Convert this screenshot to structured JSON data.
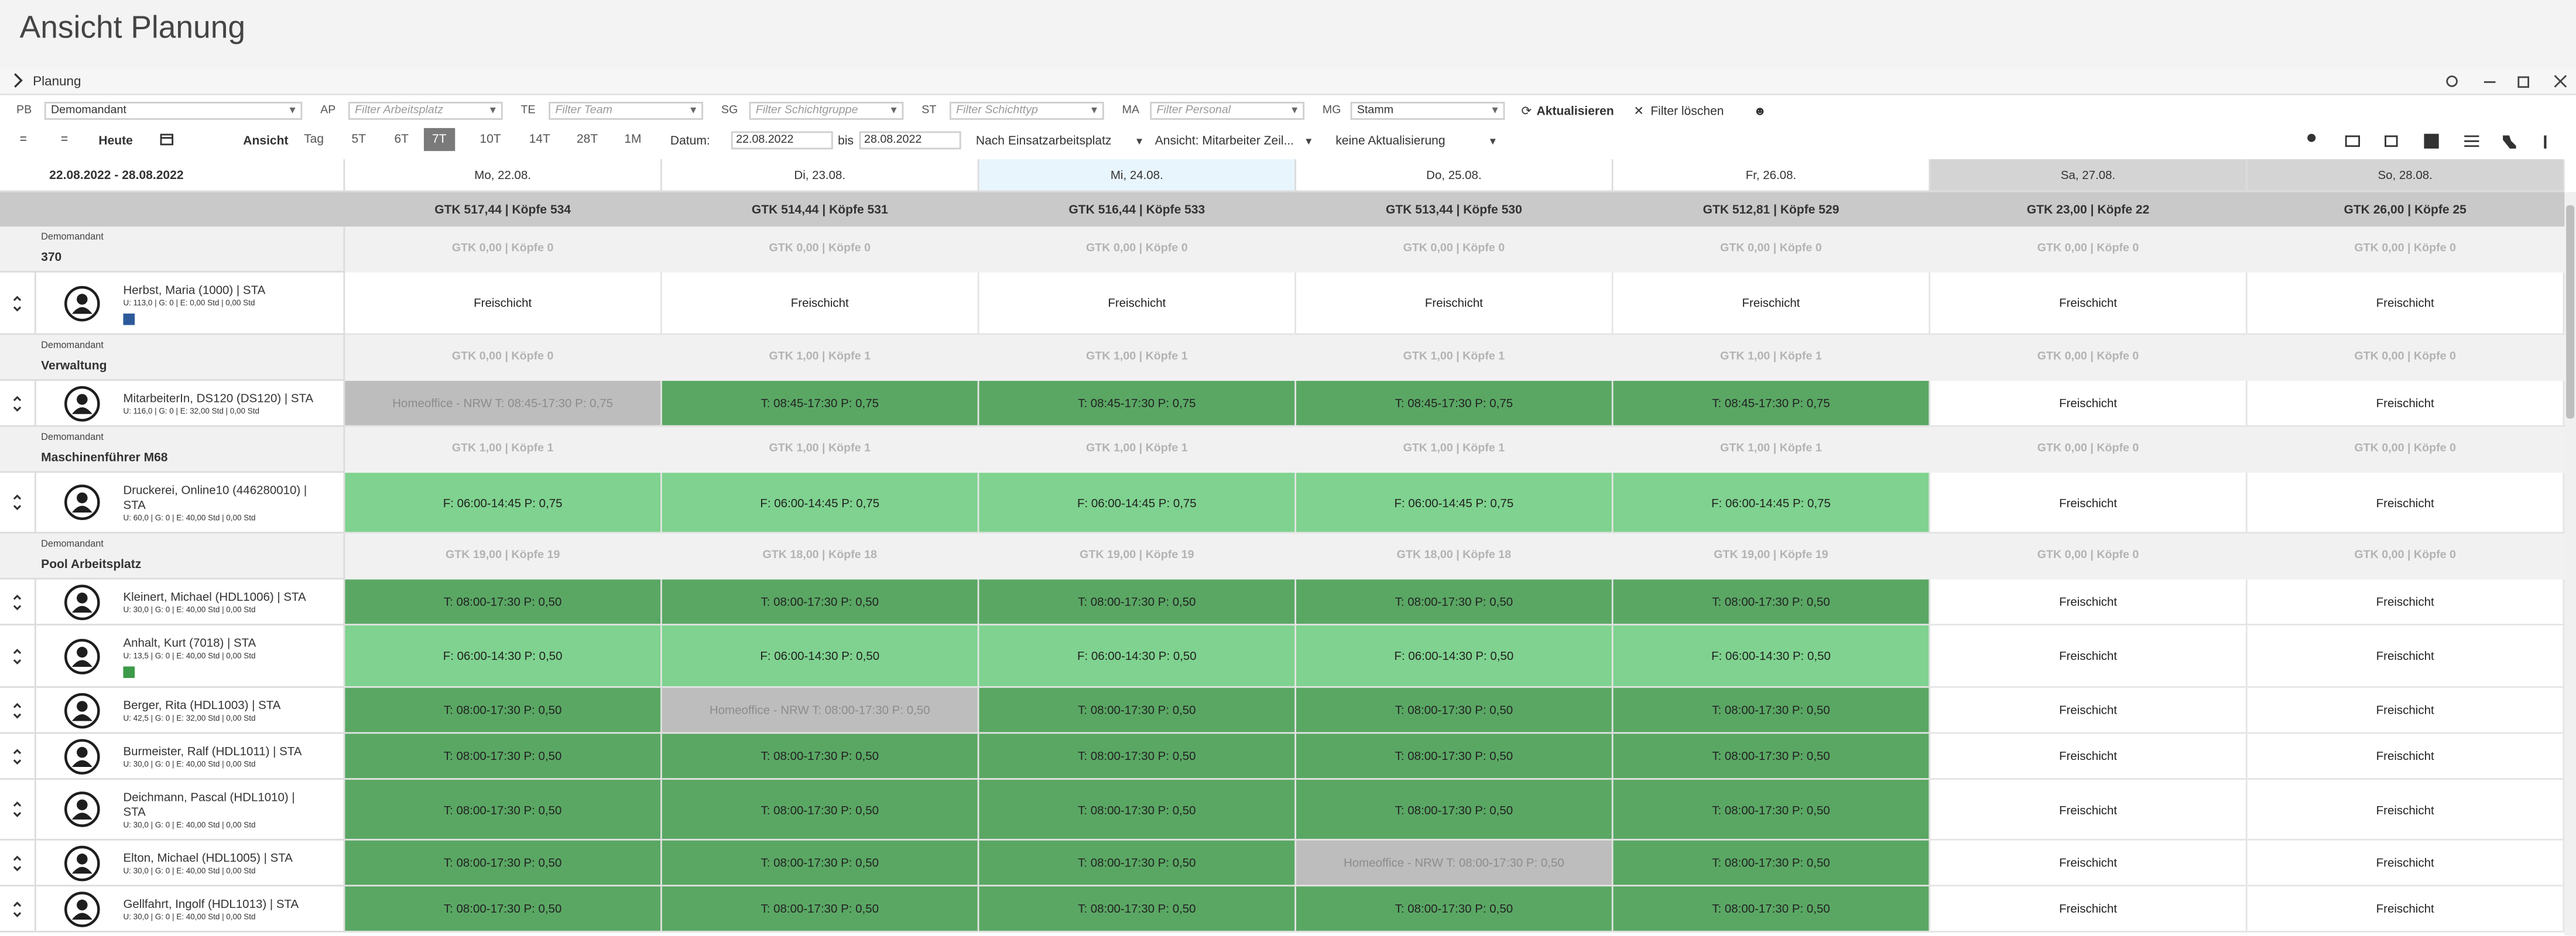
{
  "header": {
    "title": "Ansicht Planung"
  },
  "panel": {
    "title": "Planung"
  },
  "filters": [
    {
      "label": "PB",
      "value": "Demomandant"
    },
    {
      "label": "AP",
      "placeholder": "Filter Arbeitsplatz"
    },
    {
      "label": "TE",
      "placeholder": "Filter Team"
    },
    {
      "label": "SG",
      "placeholder": "Filter Schichtgruppe"
    },
    {
      "label": "ST",
      "placeholder": "Filter Schichttyp"
    },
    {
      "label": "MA",
      "placeholder": "Filter Personal"
    },
    {
      "label": "MG",
      "value": "Stamm"
    }
  ],
  "filter_buttons": {
    "refresh": "Aktualisieren",
    "clear": "Filter löschen"
  },
  "toolbar": {
    "today": "Heute",
    "view_label": "Ansicht",
    "views": [
      "Tag",
      "5T",
      "6T",
      "7T",
      "10T",
      "14T",
      "28T",
      "1M"
    ],
    "active_view": "7T",
    "date_label": "Datum:",
    "date_from": "22.08.2022",
    "date_to_label": "bis",
    "date_to": "28.08.2022",
    "grouping": "Nach Einsatzarbeitsplatz",
    "view_mode": "Ansicht: Mitarbeiter Zeil...",
    "refresh_mode": "keine Aktualisierung"
  },
  "grid": {
    "range": "22.08.2022 - 28.08.2022",
    "days": [
      {
        "label": "Mo, 22.08.",
        "color": "#ffffff"
      },
      {
        "label": "Di, 23.08.",
        "color": "#ffffff"
      },
      {
        "label": "Mi, 24.08.",
        "color": "#e9f5fc"
      },
      {
        "label": "Do, 25.08.",
        "color": "#ffffff"
      },
      {
        "label": "Fr, 26.08.",
        "color": "#ffffff"
      },
      {
        "label": "Sa, 27.08.",
        "color": "#d4d4d4"
      },
      {
        "label": "So, 28.08.",
        "color": "#d4d4d4"
      }
    ],
    "totals": [
      "GTK 517,44 | Köpfe 534",
      "GTK 514,44 | Köpfe 531",
      "GTK 516,44 | Köpfe 533",
      "GTK 513,44 | Köpfe 530",
      "GTK 512,81 | Köpfe 529",
      "GTK 23,00 | Köpfe 22",
      "GTK 26,00 | Köpfe 25"
    ],
    "groups": [
      {
        "client": "Demomandant",
        "name": "370",
        "summaries": [
          "GTK 0,00 | Köpfe 0",
          "GTK 0,00 | Köpfe 0",
          "GTK 0,00 | Köpfe 0",
          "GTK 0,00 | Köpfe 0",
          "GTK 0,00 | Köpfe 0",
          "GTK 0,00 | Köpfe 0",
          "GTK 0,00 | Köpfe 0"
        ],
        "rows": [
          {
            "name": "Herbst, Maria (1000) | STA",
            "info": "U: 113,0 | G: 0 | E: 0,00 Std | 0,00 Std",
            "badge_color": "#2d5a9a",
            "cells": [
              {
                "text": "Freischicht",
                "color": "#ffffff"
              },
              {
                "text": "Freischicht",
                "color": "#ffffff"
              },
              {
                "text": "Freischicht",
                "color": "#ffffff"
              },
              {
                "text": "Freischicht",
                "color": "#ffffff"
              },
              {
                "text": "Freischicht",
                "color": "#ffffff"
              },
              {
                "text": "Freischicht",
                "color": "#ffffff"
              },
              {
                "text": "Freischicht",
                "color": "#ffffff"
              }
            ]
          }
        ]
      },
      {
        "client": "Demomandant",
        "name": "Verwaltung",
        "summaries": [
          "GTK 0,00 | Köpfe 0",
          "GTK 1,00 | Köpfe 1",
          "GTK 1,00 | Köpfe 1",
          "GTK 1,00 | Köpfe 1",
          "GTK 1,00 | Köpfe 1",
          "GTK 0,00 | Köpfe 0",
          "GTK 0,00 | Köpfe 0"
        ],
        "rows": [
          {
            "name": "MitarbeiterIn, DS120 (DS120) | STA",
            "info": "U: 116,0 | G: 0 | E: 32,00 Std | 0,00 Std",
            "cells": [
              {
                "text": "Homeoffice - NRW T: 08:45-17:30 P: 0,75",
                "color": "#bdbdbd",
                "text_color": "#8c8c8c"
              },
              {
                "text": "T: 08:45-17:30 P: 0,75",
                "color": "#5aa764"
              },
              {
                "text": "T: 08:45-17:30 P: 0,75",
                "color": "#5aa764"
              },
              {
                "text": "T: 08:45-17:30 P: 0,75",
                "color": "#5aa764"
              },
              {
                "text": "T: 08:45-17:30 P: 0,75",
                "color": "#5aa764"
              },
              {
                "text": "Freischicht",
                "color": "#ffffff"
              },
              {
                "text": "Freischicht",
                "color": "#ffffff"
              }
            ]
          }
        ]
      },
      {
        "client": "Demomandant",
        "name": "Maschinenführer M68",
        "summaries": [
          "GTK 1,00 | Köpfe 1",
          "GTK 1,00 | Köpfe 1",
          "GTK 1,00 | Köpfe 1",
          "GTK 1,00 | Köpfe 1",
          "GTK 1,00 | Köpfe 1",
          "GTK 0,00 | Köpfe 0",
          "GTK 0,00 | Köpfe 0"
        ],
        "rows": [
          {
            "name": "Druckerei, Online10 (446280010) | STA",
            "info": "U: 60,0 | G: 0 | E: 40,00 Std | 0,00 Std",
            "cells": [
              {
                "text": "F: 06:00-14:45 P: 0,75",
                "color": "#7fd28f"
              },
              {
                "text": "F: 06:00-14:45 P: 0,75",
                "color": "#7fd28f"
              },
              {
                "text": "F: 06:00-14:45 P: 0,75",
                "color": "#7fd28f"
              },
              {
                "text": "F: 06:00-14:45 P: 0,75",
                "color": "#7fd28f"
              },
              {
                "text": "F: 06:00-14:45 P: 0,75",
                "color": "#7fd28f"
              },
              {
                "text": "Freischicht",
                "color": "#ffffff"
              },
              {
                "text": "Freischicht",
                "color": "#ffffff"
              }
            ]
          }
        ]
      },
      {
        "client": "Demomandant",
        "name": "Pool Arbeitsplatz",
        "summaries": [
          "GTK 19,00 | Köpfe 19",
          "GTK 18,00 | Köpfe 18",
          "GTK 19,00 | Köpfe 19",
          "GTK 18,00 | Köpfe 18",
          "GTK 19,00 | Köpfe 19",
          "GTK 0,00 | Köpfe 0",
          "GTK 0,00 | Köpfe 0"
        ],
        "rows": [
          {
            "name": "Kleinert, Michael (HDL1006) | STA",
            "info": "U: 30,0 | G: 0 | E: 40,00 Std | 0,00 Std",
            "cells": [
              {
                "text": "T: 08:00-17:30 P: 0,50",
                "color": "#5aa764"
              },
              {
                "text": "T: 08:00-17:30 P: 0,50",
                "color": "#5aa764"
              },
              {
                "text": "T: 08:00-17:30 P: 0,50",
                "color": "#5aa764"
              },
              {
                "text": "T: 08:00-17:30 P: 0,50",
                "color": "#5aa764"
              },
              {
                "text": "T: 08:00-17:30 P: 0,50",
                "color": "#5aa764"
              },
              {
                "text": "Freischicht",
                "color": "#ffffff"
              },
              {
                "text": "Freischicht",
                "color": "#ffffff"
              }
            ]
          },
          {
            "name": "Anhalt, Kurt (7018) | STA",
            "info": "U: 13,5 | G: 0 | E: 40,00 Std | 0,00 Std",
            "badge_color": "#3c9a48",
            "cells": [
              {
                "text": "F: 06:00-14:30 P: 0,50",
                "color": "#7fd28f"
              },
              {
                "text": "F: 06:00-14:30 P: 0,50",
                "color": "#7fd28f"
              },
              {
                "text": "F: 06:00-14:30 P: 0,50",
                "color": "#7fd28f"
              },
              {
                "text": "F: 06:00-14:30 P: 0,50",
                "color": "#7fd28f"
              },
              {
                "text": "F: 06:00-14:30 P: 0,50",
                "color": "#7fd28f"
              },
              {
                "text": "Freischicht",
                "color": "#ffffff"
              },
              {
                "text": "Freischicht",
                "color": "#ffffff"
              }
            ]
          },
          {
            "name": "Berger, Rita (HDL1003) | STA",
            "info": "U: 42,5 | G: 0 | E: 32,00 Std | 0,00 Std",
            "cells": [
              {
                "text": "T: 08:00-17:30 P: 0,50",
                "color": "#5aa764"
              },
              {
                "text": "Homeoffice - NRW T: 08:00-17:30 P: 0,50",
                "color": "#bdbdbd",
                "text_color": "#8c8c8c"
              },
              {
                "text": "T: 08:00-17:30 P: 0,50",
                "color": "#5aa764"
              },
              {
                "text": "T: 08:00-17:30 P: 0,50",
                "color": "#5aa764"
              },
              {
                "text": "T: 08:00-17:30 P: 0,50",
                "color": "#5aa764"
              },
              {
                "text": "Freischicht",
                "color": "#ffffff"
              },
              {
                "text": "Freischicht",
                "color": "#ffffff"
              }
            ]
          },
          {
            "name": "Burmeister, Ralf (HDL1011) | STA",
            "info": "U: 30,0 | G: 0 | E: 40,00 Std | 0,00 Std",
            "cells": [
              {
                "text": "T: 08:00-17:30 P: 0,50",
                "color": "#5aa764"
              },
              {
                "text": "T: 08:00-17:30 P: 0,50",
                "color": "#5aa764"
              },
              {
                "text": "T: 08:00-17:30 P: 0,50",
                "color": "#5aa764"
              },
              {
                "text": "T: 08:00-17:30 P: 0,50",
                "color": "#5aa764"
              },
              {
                "text": "T: 08:00-17:30 P: 0,50",
                "color": "#5aa764"
              },
              {
                "text": "Freischicht",
                "color": "#ffffff"
              },
              {
                "text": "Freischicht",
                "color": "#ffffff"
              }
            ]
          },
          {
            "name": "Deichmann, Pascal (HDL1010) | STA",
            "info": "U: 30,0 | G: 0 | E: 40,00 Std | 0,00 Std",
            "cells": [
              {
                "text": "T: 08:00-17:30 P: 0,50",
                "color": "#5aa764"
              },
              {
                "text": "T: 08:00-17:30 P: 0,50",
                "color": "#5aa764"
              },
              {
                "text": "T: 08:00-17:30 P: 0,50",
                "color": "#5aa764"
              },
              {
                "text": "T: 08:00-17:30 P: 0,50",
                "color": "#5aa764"
              },
              {
                "text": "T: 08:00-17:30 P: 0,50",
                "color": "#5aa764"
              },
              {
                "text": "Freischicht",
                "color": "#ffffff"
              },
              {
                "text": "Freischicht",
                "color": "#ffffff"
              }
            ]
          },
          {
            "name": "Elton, Michael (HDL1005) | STA",
            "info": "U: 30,0 | G: 0 | E: 40,00 Std | 0,00 Std",
            "cells": [
              {
                "text": "T: 08:00-17:30 P: 0,50",
                "color": "#5aa764"
              },
              {
                "text": "T: 08:00-17:30 P: 0,50",
                "color": "#5aa764"
              },
              {
                "text": "T: 08:00-17:30 P: 0,50",
                "color": "#5aa764"
              },
              {
                "text": "Homeoffice - NRW T: 08:00-17:30 P: 0,50",
                "color": "#bdbdbd",
                "text_color": "#8c8c8c"
              },
              {
                "text": "T: 08:00-17:30 P: 0,50",
                "color": "#5aa764"
              },
              {
                "text": "Freischicht",
                "color": "#ffffff"
              },
              {
                "text": "Freischicht",
                "color": "#ffffff"
              }
            ]
          },
          {
            "name": "Gellfahrt, Ingolf (HDL1013) | STA",
            "info": "U: 30,0 | G: 0 | E: 40,00 Std | 0,00 Std",
            "cells": [
              {
                "text": "T: 08:00-17:30 P: 0,50",
                "color": "#5aa764"
              },
              {
                "text": "T: 08:00-17:30 P: 0,50",
                "color": "#5aa764"
              },
              {
                "text": "T: 08:00-17:30 P: 0,50",
                "color": "#5aa764"
              },
              {
                "text": "T: 08:00-17:30 P: 0,50",
                "color": "#5aa764"
              },
              {
                "text": "T: 08:00-17:30 P: 0,50",
                "color": "#5aa764"
              },
              {
                "text": "Freischicht",
                "color": "#ffffff"
              },
              {
                "text": "Freischicht",
                "color": "#ffffff"
              }
            ]
          }
        ]
      }
    ]
  }
}
